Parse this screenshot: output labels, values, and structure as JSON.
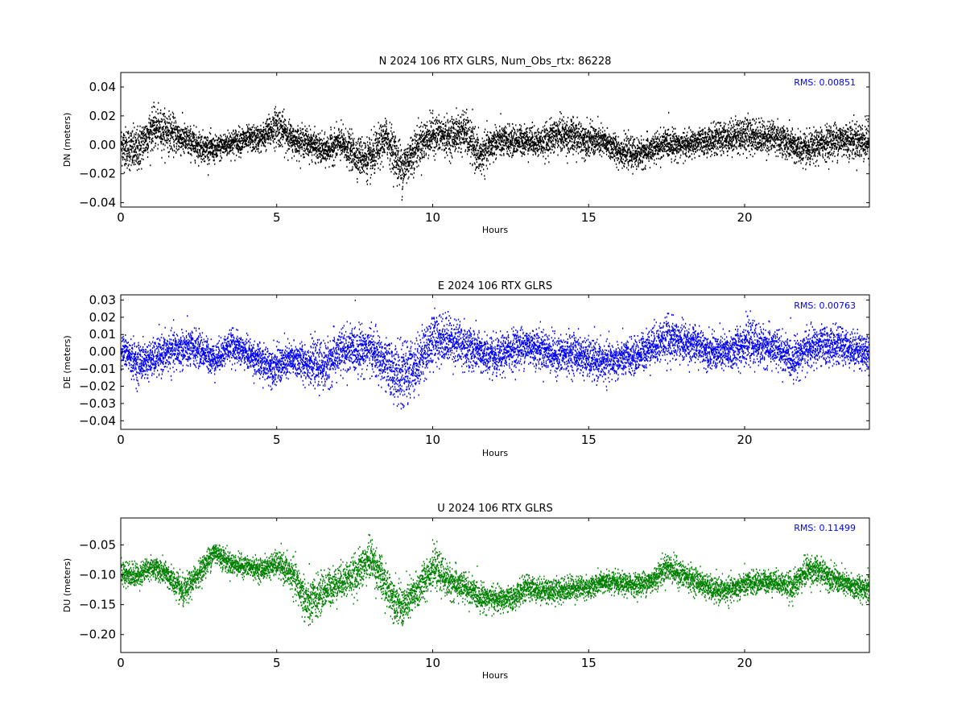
{
  "chart_data": [
    {
      "type": "scatter",
      "title": "N 2024 106 RTX  GLRS, Num_Obs_rtx: 86228",
      "xlabel": "Hours",
      "ylabel": "DN (meters)",
      "xlim": [
        0,
        24
      ],
      "ylim": [
        -0.043,
        0.05
      ],
      "xticks": [
        0,
        5,
        10,
        15,
        20
      ],
      "xtick_labels": [
        "0",
        "5",
        "10",
        "15",
        "20"
      ],
      "yticks": [
        -0.04,
        -0.02,
        0.0,
        0.02,
        0.04
      ],
      "ytick_labels": [
        "−0.04",
        "−0.02",
        "0.00",
        "0.02",
        "0.04"
      ],
      "annotation": "RMS:  0.00851",
      "color": "#000000",
      "grid": false,
      "series": [
        {
          "x": [
            0.0,
            0.5,
            1.0,
            1.5,
            2.0,
            2.5,
            3.0,
            3.5,
            4.0,
            4.5,
            5.0,
            5.5,
            6.0,
            6.5,
            7.0,
            7.5,
            8.0,
            8.5,
            9.0,
            9.5,
            10.0,
            10.5,
            11.0,
            11.5,
            12.0,
            12.5,
            13.0,
            13.5,
            14.0,
            14.5,
            15.0,
            15.5,
            16.0,
            16.5,
            17.0,
            17.5,
            18.0,
            18.5,
            19.0,
            19.5,
            20.0,
            20.5,
            21.0,
            21.5,
            22.0,
            22.5,
            23.0,
            23.5,
            24.0
          ],
          "y": [
            0.0,
            -0.004,
            0.012,
            0.01,
            0.004,
            0.0,
            -0.003,
            0.002,
            0.004,
            0.005,
            0.014,
            0.004,
            0.002,
            -0.004,
            0.002,
            -0.006,
            -0.01,
            0.006,
            -0.016,
            0.0,
            0.008,
            0.006,
            0.01,
            -0.008,
            0.003,
            0.003,
            0.004,
            0.002,
            0.008,
            0.006,
            0.004,
            0.002,
            -0.004,
            -0.006,
            -0.003,
            0.002,
            0.0,
            0.002,
            0.004,
            0.006,
            0.008,
            0.006,
            0.006,
            0.0,
            -0.004,
            0.002,
            0.004,
            0.004,
            0.002
          ],
          "spread": [
            0.012,
            0.014,
            0.012,
            0.012,
            0.01,
            0.009,
            0.008,
            0.008,
            0.008,
            0.008,
            0.012,
            0.009,
            0.009,
            0.009,
            0.01,
            0.011,
            0.013,
            0.012,
            0.015,
            0.012,
            0.012,
            0.011,
            0.013,
            0.012,
            0.01,
            0.009,
            0.009,
            0.009,
            0.011,
            0.011,
            0.01,
            0.009,
            0.009,
            0.009,
            0.009,
            0.009,
            0.008,
            0.008,
            0.009,
            0.01,
            0.011,
            0.01,
            0.01,
            0.01,
            0.01,
            0.01,
            0.011,
            0.011,
            0.012
          ]
        }
      ]
    },
    {
      "type": "scatter",
      "title": "E 2024 106 RTX  GLRS",
      "xlabel": "Hours",
      "ylabel": "DE (meters)",
      "xlim": [
        0,
        24
      ],
      "ylim": [
        -0.045,
        0.033
      ],
      "xticks": [
        0,
        5,
        10,
        15,
        20
      ],
      "xtick_labels": [
        "0",
        "5",
        "10",
        "15",
        "20"
      ],
      "yticks": [
        -0.04,
        -0.03,
        -0.02,
        -0.01,
        0.0,
        0.01,
        0.02,
        0.03
      ],
      "ytick_labels": [
        "−0.04",
        "−0.03",
        "−0.02",
        "−0.01",
        "0.00",
        "0.01",
        "0.02",
        "0.03"
      ],
      "annotation": "RMS:  0.00763",
      "color": "#0000ff",
      "grid": false,
      "series": [
        {
          "x": [
            0.0,
            0.5,
            1.0,
            1.5,
            2.0,
            2.5,
            3.0,
            3.5,
            4.0,
            4.5,
            5.0,
            5.5,
            6.0,
            6.5,
            7.0,
            7.5,
            8.0,
            8.5,
            9.0,
            9.5,
            10.0,
            10.5,
            11.0,
            11.5,
            12.0,
            12.5,
            13.0,
            13.5,
            14.0,
            14.5,
            15.0,
            15.5,
            16.0,
            16.5,
            17.0,
            17.5,
            18.0,
            18.5,
            19.0,
            19.5,
            20.0,
            20.5,
            21.0,
            21.5,
            22.0,
            22.5,
            23.0,
            23.5,
            24.0
          ],
          "y": [
            0.002,
            -0.006,
            -0.004,
            0.0,
            0.002,
            0.002,
            -0.004,
            0.004,
            0.0,
            -0.006,
            -0.008,
            -0.004,
            -0.006,
            -0.008,
            0.0,
            0.002,
            0.002,
            -0.008,
            -0.014,
            -0.006,
            0.008,
            0.008,
            0.004,
            0.0,
            -0.004,
            0.002,
            0.004,
            0.002,
            -0.002,
            0.0,
            -0.004,
            -0.006,
            -0.004,
            -0.002,
            0.004,
            0.008,
            0.006,
            0.004,
            0.0,
            0.0,
            0.006,
            0.004,
            0.002,
            -0.004,
            0.002,
            0.004,
            0.004,
            0.002,
            0.0
          ],
          "spread": [
            0.008,
            0.01,
            0.009,
            0.01,
            0.01,
            0.009,
            0.008,
            0.008,
            0.008,
            0.009,
            0.01,
            0.009,
            0.01,
            0.012,
            0.012,
            0.012,
            0.011,
            0.013,
            0.016,
            0.014,
            0.013,
            0.012,
            0.012,
            0.01,
            0.01,
            0.01,
            0.01,
            0.01,
            0.01,
            0.01,
            0.01,
            0.01,
            0.009,
            0.009,
            0.01,
            0.011,
            0.01,
            0.009,
            0.009,
            0.01,
            0.011,
            0.01,
            0.01,
            0.01,
            0.01,
            0.01,
            0.009,
            0.009,
            0.009
          ]
        }
      ]
    },
    {
      "type": "scatter",
      "title": "U 2024 106 RTX  GLRS",
      "xlabel": "Hours",
      "ylabel": "DU (meters)",
      "xlim": [
        0,
        24
      ],
      "ylim": [
        -0.23,
        -0.005
      ],
      "xticks": [
        0,
        5,
        10,
        15,
        20
      ],
      "xtick_labels": [
        "0",
        "5",
        "10",
        "15",
        "20"
      ],
      "yticks": [
        -0.2,
        -0.15,
        -0.1,
        -0.05
      ],
      "ytick_labels": [
        "−0.20",
        "−0.15",
        "−0.10",
        "−0.05"
      ],
      "annotation": "RMS:  0.11499",
      "color": "#008000",
      "grid": false,
      "series": [
        {
          "x": [
            0.0,
            0.5,
            1.0,
            1.5,
            2.0,
            2.5,
            3.0,
            3.5,
            4.0,
            4.5,
            5.0,
            5.5,
            6.0,
            6.5,
            7.0,
            7.5,
            8.0,
            8.5,
            9.0,
            9.5,
            10.0,
            10.5,
            11.0,
            11.5,
            12.0,
            12.5,
            13.0,
            13.5,
            14.0,
            14.5,
            15.0,
            15.5,
            16.0,
            16.5,
            17.0,
            17.5,
            18.0,
            18.5,
            19.0,
            19.5,
            20.0,
            20.5,
            21.0,
            21.5,
            22.0,
            22.5,
            23.0,
            23.5,
            24.0
          ],
          "y": [
            -0.095,
            -0.1,
            -0.085,
            -0.1,
            -0.13,
            -0.095,
            -0.06,
            -0.08,
            -0.085,
            -0.09,
            -0.08,
            -0.1,
            -0.15,
            -0.125,
            -0.11,
            -0.1,
            -0.07,
            -0.12,
            -0.155,
            -0.125,
            -0.085,
            -0.11,
            -0.12,
            -0.135,
            -0.14,
            -0.14,
            -0.12,
            -0.125,
            -0.125,
            -0.12,
            -0.12,
            -0.11,
            -0.115,
            -0.115,
            -0.11,
            -0.085,
            -0.1,
            -0.11,
            -0.125,
            -0.125,
            -0.115,
            -0.11,
            -0.11,
            -0.12,
            -0.09,
            -0.095,
            -0.11,
            -0.12,
            -0.12
          ],
          "spread": [
            0.018,
            0.018,
            0.016,
            0.018,
            0.022,
            0.018,
            0.018,
            0.016,
            0.015,
            0.016,
            0.018,
            0.025,
            0.035,
            0.028,
            0.025,
            0.028,
            0.03,
            0.03,
            0.03,
            0.028,
            0.028,
            0.025,
            0.022,
            0.02,
            0.018,
            0.018,
            0.018,
            0.018,
            0.018,
            0.018,
            0.016,
            0.016,
            0.016,
            0.016,
            0.018,
            0.02,
            0.02,
            0.018,
            0.018,
            0.018,
            0.018,
            0.016,
            0.016,
            0.02,
            0.022,
            0.02,
            0.018,
            0.018,
            0.02
          ]
        }
      ]
    }
  ]
}
